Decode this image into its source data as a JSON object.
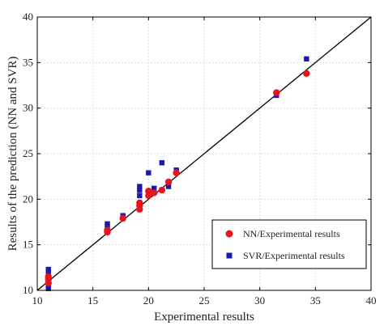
{
  "chart_data": {
    "type": "scatter",
    "title": "",
    "xlabel": "Experimental results",
    "ylabel": "Results of the prediction (NN and SVR)",
    "xlim": [
      10,
      40
    ],
    "ylim": [
      10,
      40
    ],
    "xticks": [
      10,
      15,
      20,
      25,
      30,
      35,
      40
    ],
    "yticks": [
      10,
      15,
      20,
      25,
      30,
      35,
      40
    ],
    "grid": true,
    "reference_line": {
      "from": [
        10,
        10
      ],
      "to": [
        40,
        40
      ],
      "color": "#000000"
    },
    "legend_position": "bottom-right",
    "series": [
      {
        "name": "NN/Experimental results",
        "marker": "circle",
        "color": "#e8141c",
        "points": [
          [
            11.0,
            10.8
          ],
          [
            11.0,
            11.2
          ],
          [
            11.0,
            11.5
          ],
          [
            16.3,
            16.4
          ],
          [
            16.3,
            16.6
          ],
          [
            17.7,
            17.9
          ],
          [
            19.2,
            18.9
          ],
          [
            19.2,
            19.3
          ],
          [
            19.2,
            19.6
          ],
          [
            20.0,
            20.4
          ],
          [
            20.0,
            20.9
          ],
          [
            20.5,
            20.7
          ],
          [
            21.2,
            21.0
          ],
          [
            21.8,
            21.9
          ],
          [
            22.5,
            22.9
          ],
          [
            31.5,
            31.7
          ],
          [
            34.2,
            33.8
          ]
        ]
      },
      {
        "name": "SVR/Experimental results",
        "marker": "square",
        "color": "#1a1ab0",
        "points": [
          [
            11.0,
            10.2
          ],
          [
            11.0,
            10.5
          ],
          [
            11.0,
            12.0
          ],
          [
            11.0,
            12.3
          ],
          [
            16.3,
            17.0
          ],
          [
            16.3,
            17.3
          ],
          [
            17.7,
            18.2
          ],
          [
            19.2,
            20.4
          ],
          [
            19.2,
            21.0
          ],
          [
            19.2,
            21.4
          ],
          [
            20.0,
            22.9
          ],
          [
            20.0,
            20.7
          ],
          [
            20.5,
            21.2
          ],
          [
            21.2,
            24.0
          ],
          [
            21.8,
            21.4
          ],
          [
            22.5,
            23.2
          ],
          [
            31.5,
            31.4
          ],
          [
            34.2,
            35.4
          ]
        ]
      }
    ]
  }
}
